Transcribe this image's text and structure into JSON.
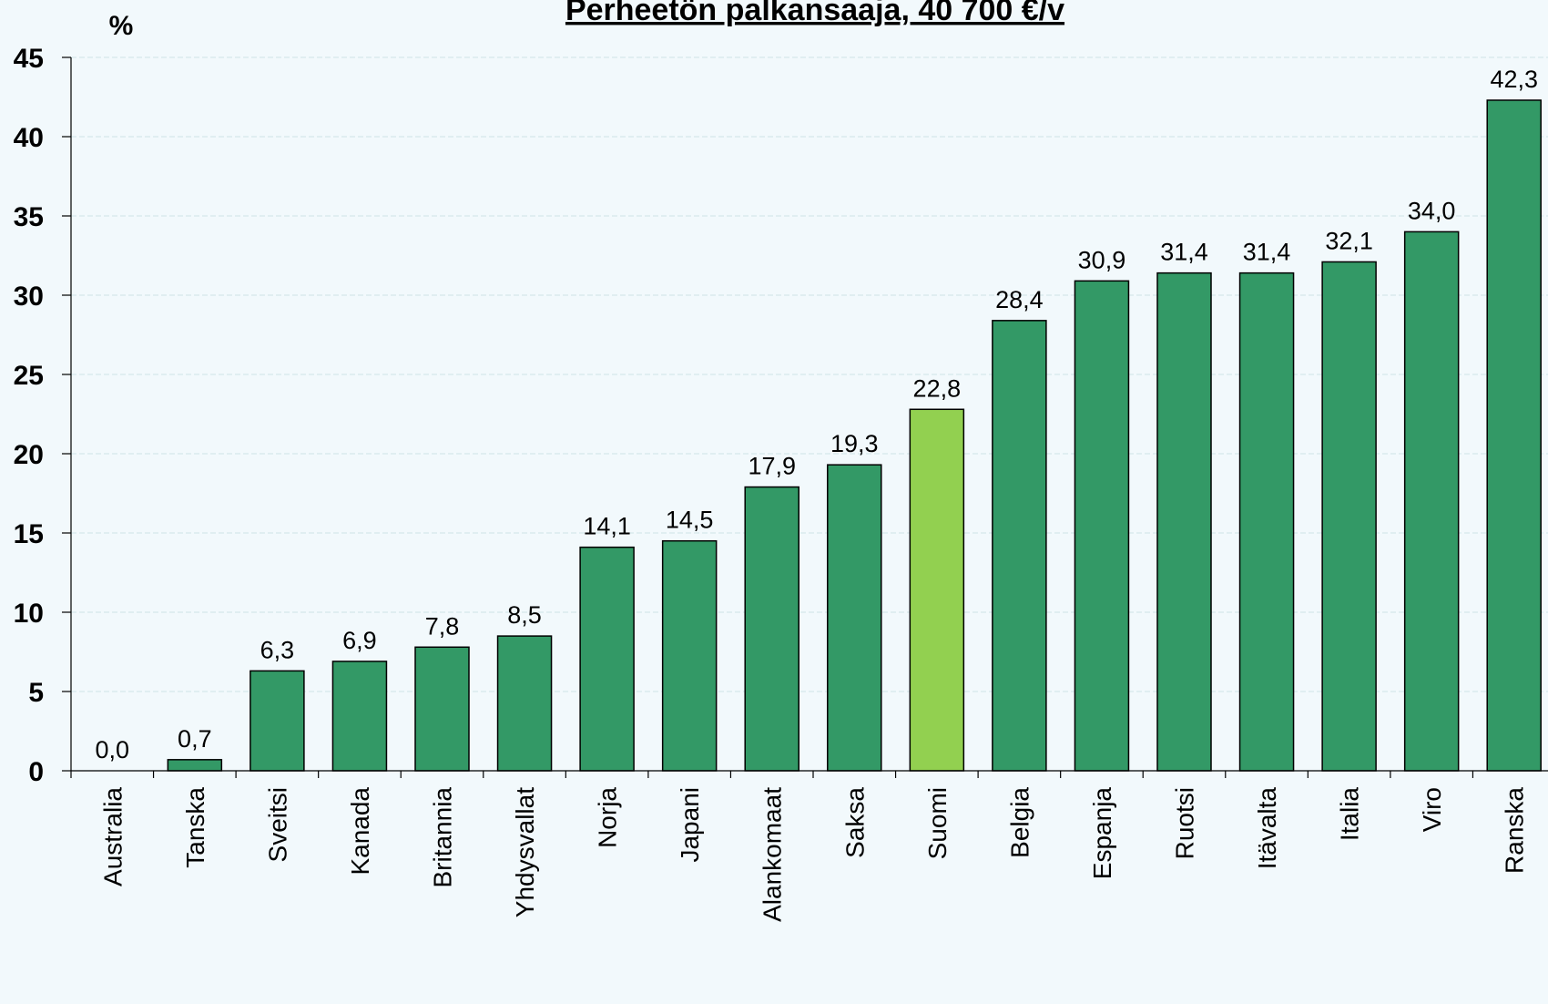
{
  "chart_data": {
    "type": "bar",
    "title": "Perheetön palkansaaja, 40 700 €/v",
    "ylabel": "%",
    "xlabel": "",
    "ylim": [
      0,
      45
    ],
    "yticks": [
      "0",
      "5",
      "10",
      "15",
      "20",
      "25",
      "30",
      "35",
      "40",
      "45"
    ],
    "grid": true,
    "categories": [
      "Australia",
      "Tanska",
      "Sveitsi",
      "Kanada",
      "Britannia",
      "Yhdysvallat",
      "Norja",
      "Japani",
      "Alankomaat",
      "Saksa",
      "Suomi",
      "Belgia",
      "Espanja",
      "Ruotsi",
      "Itävalta",
      "Italia",
      "Viro",
      "Ranska"
    ],
    "values": [
      0.0,
      0.7,
      6.3,
      6.9,
      7.8,
      8.5,
      14.1,
      14.5,
      17.9,
      19.3,
      22.8,
      28.4,
      30.9,
      31.4,
      31.4,
      32.1,
      34.0,
      42.3
    ],
    "value_labels": [
      "0,0",
      "0,7",
      "6,3",
      "6,9",
      "7,8",
      "8,5",
      "14,1",
      "14,5",
      "17,9",
      "19,3",
      "22,8",
      "28,4",
      "30,9",
      "31,4",
      "31,4",
      "32,1",
      "34,0",
      "42,3"
    ],
    "highlight_category": "Suomi",
    "colors": {
      "bar": "#339966",
      "highlight": "#92d050",
      "background": "#f2f9fc",
      "gridline": "#cfe3e6"
    }
  }
}
